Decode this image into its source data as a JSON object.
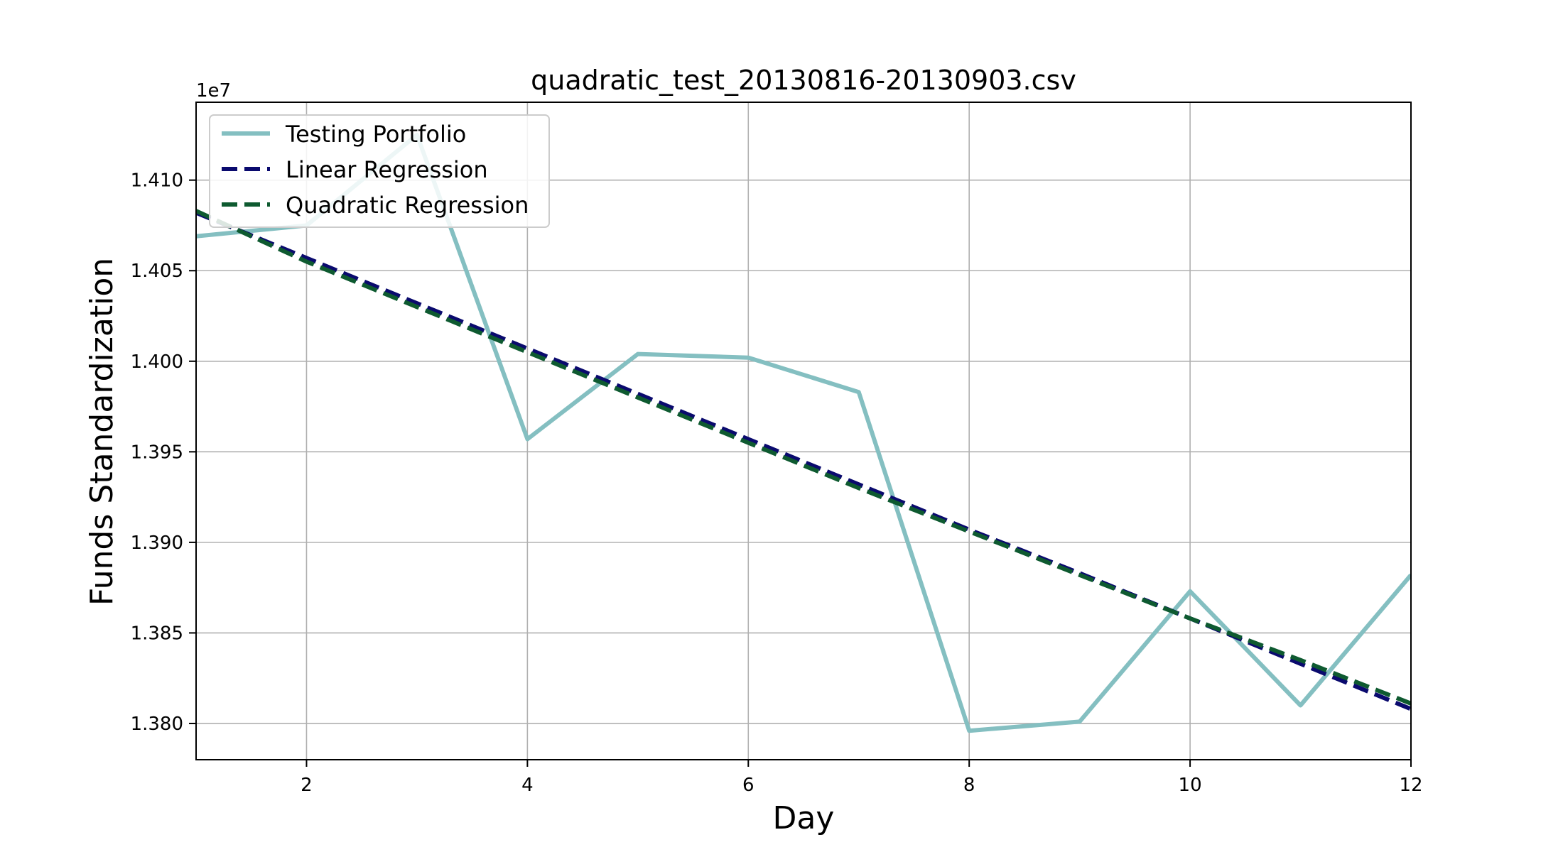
{
  "chart_data": {
    "type": "line",
    "title": "quadratic_test_20130816-20130903.csv",
    "xlabel": "Day",
    "ylabel": "Funds Standardization",
    "y_offset_label": "1e7",
    "xlim": [
      1,
      12
    ],
    "ylim": [
      1.378,
      1.4143
    ],
    "x_ticks": [
      2,
      4,
      6,
      8,
      10,
      12
    ],
    "y_ticks": [
      1.38,
      1.385,
      1.39,
      1.395,
      1.4,
      1.405,
      1.41
    ],
    "y_tick_labels": [
      "1.380",
      "1.385",
      "1.390",
      "1.395",
      "1.400",
      "1.405",
      "1.410"
    ],
    "grid": true,
    "legend_position": "upper-left",
    "x": [
      1,
      2,
      3,
      4,
      5,
      6,
      7,
      8,
      9,
      10,
      11,
      12
    ],
    "series": [
      {
        "name": "Testing Portfolio",
        "style": "solid",
        "color": "#84bfc1",
        "values": [
          1.4069,
          1.4075,
          1.4125,
          1.3957,
          1.4004,
          1.4002,
          1.3983,
          1.3796,
          1.3801,
          1.3873,
          1.381,
          1.3882
        ]
      },
      {
        "name": "Linear Regression",
        "style": "dashed",
        "color": "#0a0a6e",
        "values": [
          1.4082,
          1.4057,
          1.4032,
          1.4007,
          1.3982,
          1.3957,
          1.3932,
          1.3907,
          1.3883,
          1.3858,
          1.3833,
          1.3808
        ]
      },
      {
        "name": "Quadratic Regression",
        "style": "dashed",
        "color": "#0e5a30",
        "values": [
          1.4083,
          1.4055,
          1.403,
          1.4005,
          1.398,
          1.3955,
          1.393,
          1.3906,
          1.3882,
          1.3858,
          1.3835,
          1.3811
        ]
      }
    ]
  }
}
